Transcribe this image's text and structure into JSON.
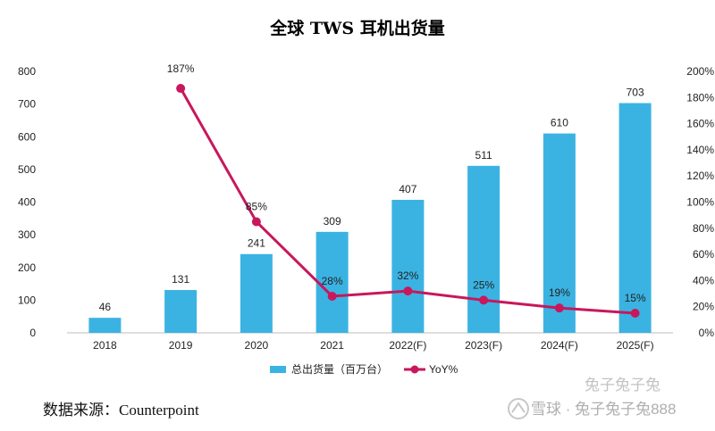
{
  "chart_data": {
    "type": "bar",
    "title": "全球 TWS 耳机出货量",
    "categories": [
      "2018",
      "2019",
      "2020",
      "2021",
      "2022(F)",
      "2023(F)",
      "2024(F)",
      "2025(F)"
    ],
    "series": [
      {
        "name": "总出货量（百万台）",
        "type": "bar",
        "axis": "left",
        "values": [
          46,
          131,
          241,
          309,
          407,
          511,
          610,
          703
        ],
        "color": "#3BB3E2"
      },
      {
        "name": "YoY%",
        "type": "line",
        "axis": "right",
        "values": [
          null,
          187,
          85,
          28,
          32,
          25,
          19,
          15
        ],
        "labels": [
          "",
          "187%",
          "85%",
          "28%",
          "32%",
          "25%",
          "19%",
          "15%"
        ],
        "color": "#C8175C"
      }
    ],
    "y_left": {
      "min": 0,
      "max": 800,
      "step": 100,
      "ticks": [
        "0",
        "100",
        "200",
        "300",
        "400",
        "500",
        "600",
        "700",
        "800"
      ]
    },
    "y_right": {
      "min": 0,
      "max": 200,
      "step": 20,
      "ticks": [
        "0%",
        "20%",
        "40%",
        "60%",
        "80%",
        "100%",
        "120%",
        "140%",
        "160%",
        "180%",
        "200%"
      ]
    },
    "grid": false,
    "legend": "bottom"
  },
  "source": "数据来源：Counterpoint",
  "watermark": {
    "text": "雪球 · 兔子兔子兔888",
    "overlay_text": "兔子兔子兔"
  }
}
